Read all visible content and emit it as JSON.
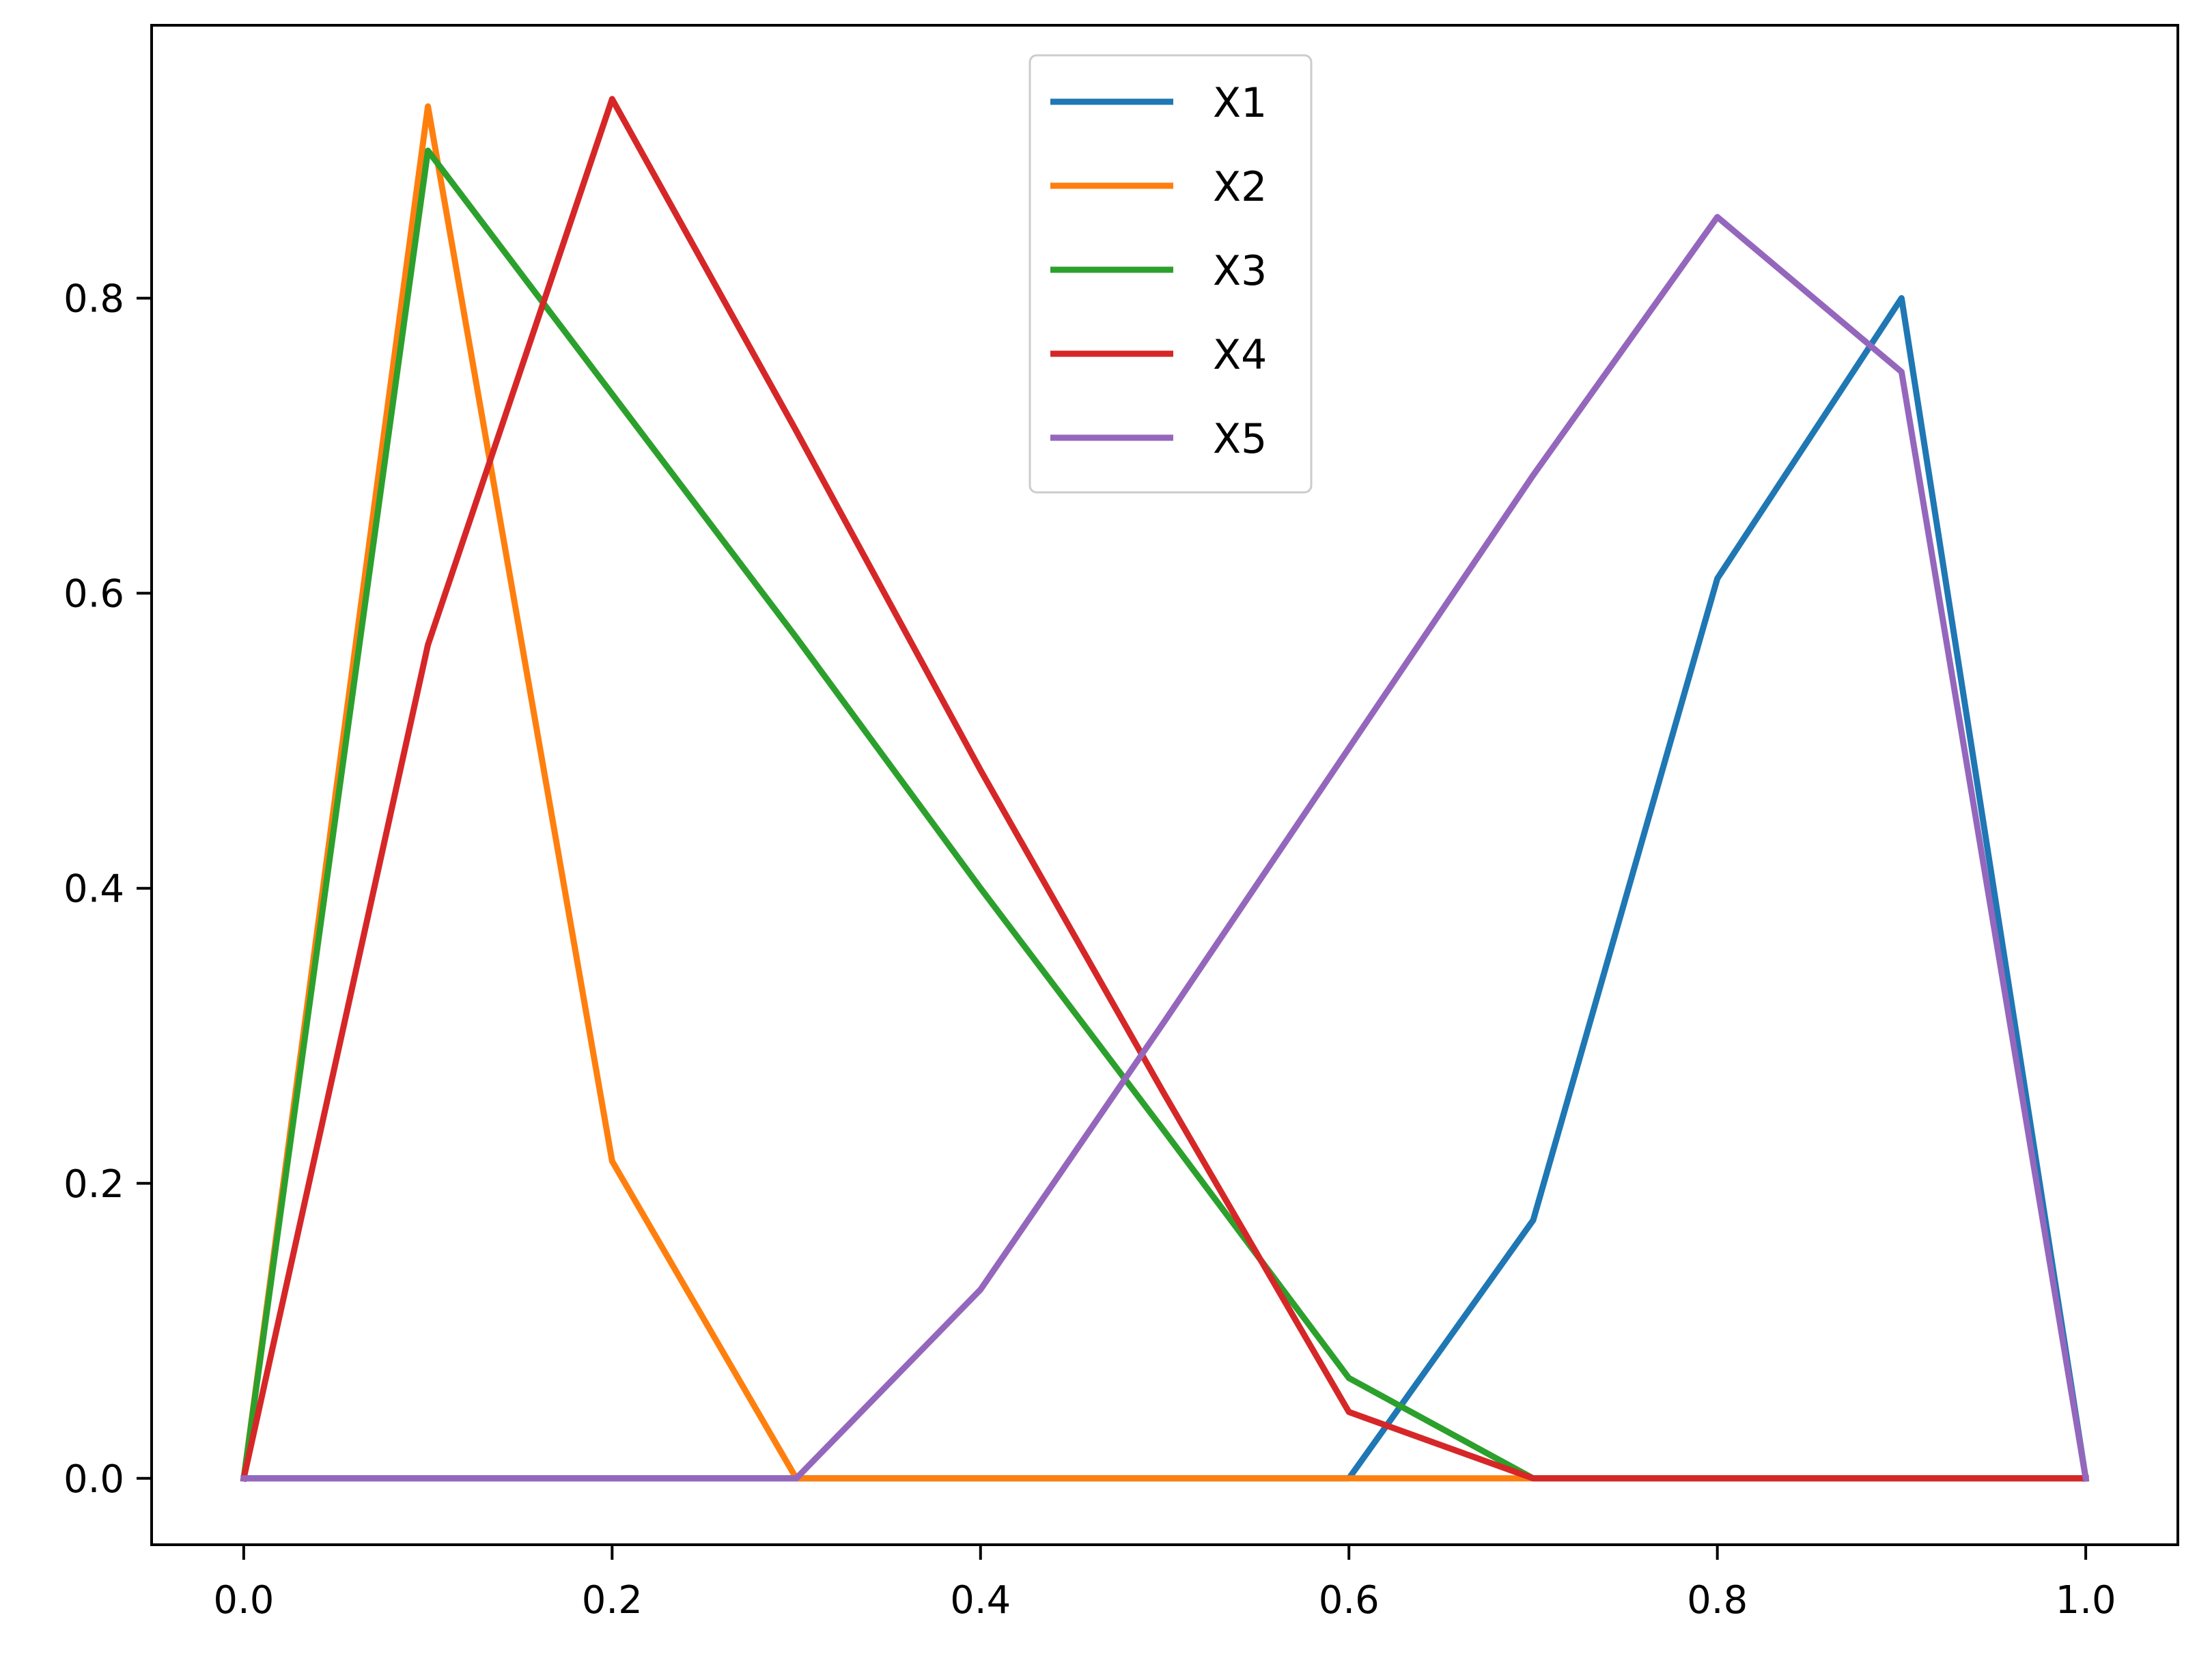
{
  "chart_data": {
    "type": "line",
    "title": "",
    "xlabel": "",
    "ylabel": "",
    "xlim": [
      -0.05,
      1.05
    ],
    "ylim": [
      -0.045,
      0.985
    ],
    "x_ticks": [
      0.0,
      0.2,
      0.4,
      0.6,
      0.8,
      1.0
    ],
    "x_tick_labels": [
      "0.0",
      "0.2",
      "0.4",
      "0.6",
      "0.8",
      "1.0"
    ],
    "y_ticks": [
      0.0,
      0.2,
      0.4,
      0.6,
      0.8
    ],
    "y_tick_labels": [
      "0.0",
      "0.2",
      "0.4",
      "0.6",
      "0.8"
    ],
    "grid": false,
    "legend_position": "upper center",
    "x": [
      0.0,
      0.1,
      0.2,
      0.3,
      0.4,
      0.5,
      0.6,
      0.7,
      0.8,
      0.9,
      1.0
    ],
    "series": [
      {
        "name": "X1",
        "color": "#1f77b4",
        "values": [
          0.0,
          0.0,
          0.0,
          0.0,
          0.0,
          0.0,
          0.0,
          0.175,
          0.61,
          0.8,
          0.0
        ]
      },
      {
        "name": "X2",
        "color": "#ff7f0e",
        "values": [
          0.0,
          0.93,
          0.215,
          0.0,
          0.0,
          0.0,
          0.0,
          0.0,
          0.0,
          0.0,
          0.0
        ]
      },
      {
        "name": "X3",
        "color": "#2ca02c",
        "values": [
          0.0,
          0.9,
          0.735,
          0.57,
          0.4,
          0.235,
          0.068,
          0.0,
          0.0,
          0.0,
          0.0
        ]
      },
      {
        "name": "X4",
        "color": "#d62728",
        "values": [
          0.0,
          0.565,
          0.935,
          0.71,
          0.48,
          0.26,
          0.045,
          0.0,
          0.0,
          0.0,
          0.0
        ]
      },
      {
        "name": "X5",
        "color": "#9467bd",
        "values": [
          0.0,
          0.0,
          0.0,
          0.0,
          0.128,
          0.31,
          0.495,
          0.68,
          0.855,
          0.75,
          0.0
        ]
      }
    ]
  }
}
